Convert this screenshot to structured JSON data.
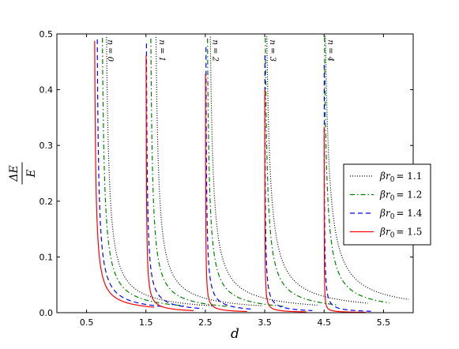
{
  "chart_data": {
    "type": "line",
    "title": "",
    "xlabel": "d",
    "ylabel": {
      "numerator": "ΔE",
      "denominator": "E"
    },
    "xlim": [
      0,
      6
    ],
    "ylim": [
      0,
      0.5
    ],
    "xticks": [
      0.5,
      1.5,
      2.5,
      3.5,
      4.5,
      5.5
    ],
    "xtick_labels": [
      "0.5",
      "1.5",
      "2.5",
      "3.5",
      "4.5",
      "5.5"
    ],
    "yticks": [
      0.0,
      0.1,
      0.2,
      0.3,
      0.4,
      0.5
    ],
    "ytick_labels": [
      "0.0",
      "0.1",
      "0.2",
      "0.3",
      "0.4",
      "0.5"
    ],
    "grid": false,
    "legend_position": "right",
    "series": [
      {
        "name": "βr0 = 1.1",
        "legend": {
          "symbol": "βr",
          "subscript": "0",
          "value": "= 1.1"
        },
        "color": "#000000",
        "style": "dotted",
        "asymptotes": [
          0.836,
          1.669,
          2.584,
          3.535,
          4.522
        ],
        "offsets": [
          0.045,
          0.045,
          0.05,
          0.06,
          0.07
        ],
        "tails": [
          1.8,
          1.8,
          1.8,
          1.7,
          1.4
        ]
      },
      {
        "name": "βr0 = 1.2",
        "legend": {
          "symbol": "βr",
          "subscript": "0",
          "value": "= 1.2"
        },
        "color": "#008000",
        "style": "dashdot",
        "asymptotes": [
          0.766,
          1.582,
          2.536,
          3.51,
          4.505
        ],
        "offsets": [
          0.035,
          0.03,
          0.03,
          0.035,
          0.04
        ],
        "tails": [
          1.4,
          1.3,
          1.3,
          1.2,
          1.1
        ]
      },
      {
        "name": "βr0 = 1.4",
        "legend": {
          "symbol": "βr",
          "subscript": "0",
          "value": "= 1.4"
        },
        "color": "#0000ff",
        "style": "dashed",
        "asymptotes": [
          0.68,
          1.508,
          2.51,
          3.502,
          4.501
        ],
        "offsets": [
          0.025,
          0.014,
          0.01,
          0.006,
          0.004
        ],
        "tails": [
          1.1,
          0.95,
          0.8,
          0.8,
          0.8
        ]
      },
      {
        "name": "βr0 = 1.5",
        "legend": {
          "symbol": "βr",
          "subscript": "0",
          "value": "= 1.5"
        },
        "color": "#ff0000",
        "style": "solid",
        "asymptotes": [
          0.636,
          1.502,
          2.502,
          3.5,
          4.5
        ],
        "offsets": [
          0.02,
          0.006,
          0.003,
          0.002,
          0.001
        ],
        "tails": [
          1.0,
          0.8,
          0.7,
          0.7,
          0.7
        ]
      }
    ],
    "annotations": [
      {
        "text": "n = 0",
        "x": 0.86,
        "y": 0.47
      },
      {
        "text": "n = 1",
        "x": 1.73,
        "y": 0.47
      },
      {
        "text": "n = 2",
        "x": 2.63,
        "y": 0.47
      },
      {
        "text": "n = 3",
        "x": 3.59,
        "y": 0.47
      },
      {
        "text": "n = 4",
        "x": 4.57,
        "y": 0.47
      }
    ]
  }
}
